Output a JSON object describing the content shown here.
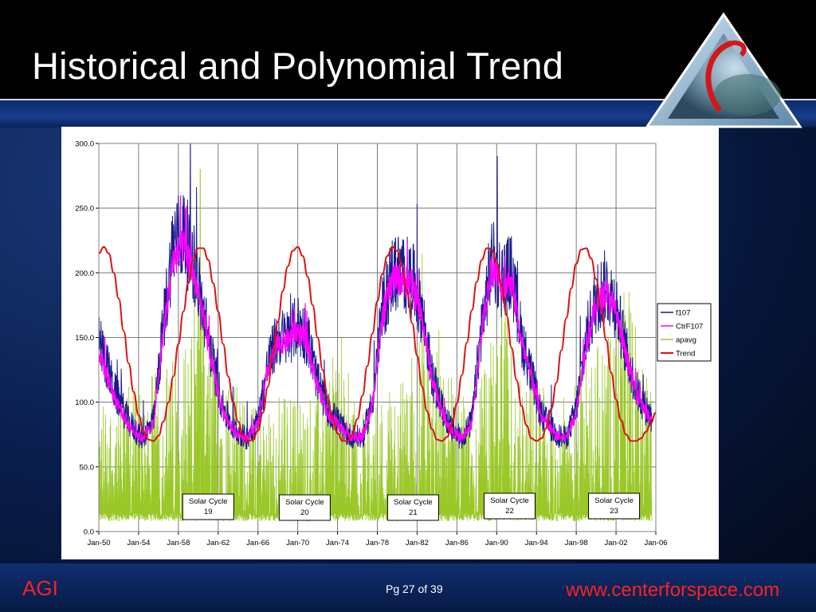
{
  "slide": {
    "title": "Historical and Polynomial Trend",
    "footer_left": "AGI",
    "page_label": "Pg 27 of 39",
    "footer_url": "www.centerforspace.com",
    "colors": {
      "title": "#ffffff",
      "footer_text": "#ff2020",
      "background": "#0a1f4f"
    },
    "logo_icon": "agi-triangle-globe-logo"
  },
  "chart_data": {
    "type": "line",
    "title": "",
    "xlabel": "",
    "ylabel": "",
    "x_ticks": [
      "Jan-50",
      "Jan-54",
      "Jan-58",
      "Jan-62",
      "Jan-66",
      "Jan-70",
      "Jan-74",
      "Jan-78",
      "Jan-82",
      "Jan-86",
      "Jan-90",
      "Jan-94",
      "Jan-98",
      "Jan-02",
      "Jan-06"
    ],
    "xlim": [
      1950.0,
      2006.0
    ],
    "ylim": [
      0,
      300
    ],
    "y_ticks": [
      "0.0",
      "50.0",
      "100.0",
      "150.0",
      "200.0",
      "250.0",
      "300.0"
    ],
    "grid": true,
    "legend_position": "right",
    "series": [
      {
        "name": "f107",
        "color": "#1a1a8c",
        "style": "noisy",
        "noise_amplitude": 26,
        "x": [
          1950.0,
          1951.5,
          1953.0,
          1954.3,
          1955.5,
          1956.5,
          1957.5,
          1958.5,
          1959.5,
          1960.5,
          1961.5,
          1962.5,
          1963.5,
          1964.8,
          1966.0,
          1967.0,
          1968.0,
          1969.0,
          1970.0,
          1971.0,
          1972.0,
          1973.0,
          1974.0,
          1975.0,
          1976.5,
          1977.5,
          1978.5,
          1979.5,
          1980.5,
          1981.5,
          1982.5,
          1983.5,
          1984.5,
          1985.5,
          1986.5,
          1987.5,
          1988.5,
          1989.5,
          1990.5,
          1991.5,
          1992.5,
          1993.5,
          1994.5,
          1996.0,
          1997.0,
          1998.0,
          1999.0,
          2000.0,
          2001.0,
          2002.0,
          2003.0,
          2004.0,
          2005.0,
          2005.6
        ],
        "values": [
          150,
          110,
          85,
          72,
          85,
          160,
          225,
          230,
          210,
          170,
          130,
          95,
          80,
          72,
          85,
          130,
          150,
          150,
          160,
          150,
          115,
          95,
          85,
          75,
          72,
          100,
          170,
          200,
          200,
          195,
          170,
          120,
          95,
          78,
          72,
          85,
          160,
          210,
          195,
          200,
          150,
          120,
          90,
          75,
          72,
          95,
          150,
          180,
          190,
          175,
          140,
          110,
          95,
          88
        ]
      },
      {
        "name": "CtrF107",
        "color": "#ff00ff",
        "style": "noisy",
        "noise_amplitude": 11,
        "x": [
          1950.0,
          1951.5,
          1953.0,
          1954.3,
          1955.5,
          1956.5,
          1957.5,
          1958.5,
          1959.5,
          1960.5,
          1961.5,
          1962.5,
          1963.5,
          1964.8,
          1966.0,
          1967.0,
          1968.0,
          1969.0,
          1970.0,
          1971.0,
          1972.0,
          1973.0,
          1974.0,
          1975.0,
          1976.5,
          1977.5,
          1978.5,
          1979.5,
          1980.5,
          1981.5,
          1982.5,
          1983.5,
          1984.5,
          1985.5,
          1986.5,
          1987.5,
          1988.5,
          1989.5,
          1990.5,
          1991.5,
          1992.5,
          1993.5,
          1994.5,
          1996.0,
          1997.0,
          1998.0,
          1999.0,
          2000.0,
          2001.0,
          2002.0,
          2003.0,
          2004.0,
          2005.0,
          2005.6
        ],
        "values": [
          140,
          105,
          82,
          72,
          83,
          155,
          210,
          220,
          200,
          165,
          125,
          92,
          78,
          72,
          83,
          125,
          145,
          148,
          155,
          145,
          112,
          92,
          83,
          74,
          72,
          98,
          165,
          195,
          195,
          190,
          165,
          118,
          92,
          77,
          72,
          83,
          155,
          205,
          190,
          195,
          145,
          118,
          88,
          74,
          72,
          92,
          145,
          175,
          185,
          170,
          135,
          108,
          92,
          85
        ]
      },
      {
        "name": "apavg",
        "color": "#9ac829",
        "style": "spiky",
        "baseline": 8,
        "spike_scale": 62,
        "x": [
          1950.0,
          1952.0,
          1954.0,
          1956.0,
          1958.0,
          1959.0,
          1960.0,
          1961.0,
          1962.0,
          1964.0,
          1966.0,
          1968.0,
          1970.0,
          1972.0,
          1974.0,
          1976.0,
          1978.0,
          1980.0,
          1982.0,
          1984.0,
          1986.0,
          1988.0,
          1990.0,
          1991.0,
          1992.0,
          1994.0,
          1996.0,
          1998.0,
          2000.0,
          2002.0,
          2003.0,
          2004.0,
          2005.0,
          2005.6
        ],
        "values": [
          95,
          95,
          110,
          110,
          130,
          150,
          180,
          150,
          130,
          100,
          85,
          95,
          95,
          100,
          150,
          80,
          90,
          110,
          130,
          150,
          90,
          95,
          150,
          160,
          120,
          110,
          80,
          110,
          130,
          160,
          180,
          150,
          120,
          90
        ],
        "peaks": [
          {
            "x": 1960.2,
            "y": 280
          },
          {
            "x": 1959.6,
            "y": 190
          },
          {
            "x": 1982.5,
            "y": 215
          },
          {
            "x": 1990.5,
            "y": 190
          },
          {
            "x": 2003.3,
            "y": 185
          }
        ]
      },
      {
        "name": "Trend",
        "color": "#e01010",
        "style": "smooth",
        "x": [
          1950.0,
          1950.5,
          1951.0,
          1951.5,
          1952.0,
          1952.5,
          1953.0,
          1953.5,
          1954.0,
          1954.5,
          1955.0,
          1955.5,
          1956.0,
          1956.5,
          1957.0,
          1957.5,
          1958.0,
          1958.5,
          1959.0,
          1959.5,
          1960.0,
          1960.5,
          1961.0,
          1961.5,
          1962.0,
          1962.5,
          1963.0,
          1963.5,
          1964.0,
          1964.5,
          1965.0,
          1965.5,
          1966.0,
          1966.5,
          1967.0,
          1967.5,
          1968.0,
          1968.5,
          1969.0,
          1969.5,
          1970.0,
          1970.5,
          1971.0,
          1971.5,
          1972.0,
          1972.5,
          1973.0,
          1973.5,
          1974.0,
          1974.5,
          1975.0,
          1975.5,
          1976.0,
          1976.5,
          1977.0,
          1977.5,
          1978.0,
          1978.5,
          1979.0,
          1979.5,
          1980.0,
          1980.5,
          1981.0,
          1981.5,
          1982.0,
          1982.5,
          1983.0,
          1983.5,
          1984.0,
          1984.5,
          1985.0,
          1985.5,
          1986.0,
          1986.5,
          1987.0,
          1987.5,
          1988.0,
          1988.5,
          1989.0,
          1989.5,
          1990.0,
          1990.5,
          1991.0,
          1991.5,
          1992.0,
          1992.5,
          1993.0,
          1993.5,
          1994.0,
          1994.5,
          1995.0,
          1995.5,
          1996.0,
          1996.5,
          1997.0,
          1997.5,
          1998.0,
          1998.5,
          1999.0,
          1999.5,
          2000.0,
          2000.5,
          2001.0,
          2001.5,
          2002.0,
          2002.5,
          2003.0,
          2003.5,
          2004.0,
          2004.5,
          2005.0,
          2005.5,
          2006.0
        ],
        "values": [
          215,
          220,
          215,
          200,
          180,
          155,
          130,
          108,
          90,
          77,
          71,
          70,
          74,
          85,
          100,
          120,
          145,
          170,
          192,
          210,
          219,
          219,
          210,
          192,
          170,
          145,
          120,
          100,
          85,
          74,
          70,
          71,
          78,
          92,
          112,
          137,
          162,
          186,
          205,
          217,
          220,
          213,
          197,
          175,
          150,
          125,
          104,
          87,
          76,
          70,
          70,
          75,
          87,
          105,
          128,
          153,
          178,
          199,
          213,
          220,
          217,
          205,
          185,
          161,
          136,
          112,
          93,
          79,
          71,
          70,
          73,
          83,
          99,
          121,
          146,
          171,
          193,
          210,
          219,
          218,
          208,
          190,
          167,
          142,
          117,
          97,
          82,
          72,
          70,
          72,
          80,
          95,
          115,
          140,
          165,
          188,
          207,
          218,
          219,
          211,
          195,
          172,
          148,
          123,
          102,
          86,
          75,
          70,
          70,
          72,
          77,
          84,
          92
        ]
      }
    ],
    "annotations": [
      {
        "label": "Solar Cycle 19",
        "lines": [
          "Solar Cycle",
          "19"
        ],
        "x": 1961.0
      },
      {
        "label": "Solar Cycle 20",
        "lines": [
          "Solar Cycle",
          "20"
        ],
        "x": 1970.7
      },
      {
        "label": "Solar Cycle 21",
        "lines": [
          "Solar Cycle",
          "21"
        ],
        "x": 1981.6
      },
      {
        "label": "Solar Cycle 22",
        "lines": [
          "Solar Cycle",
          "22"
        ],
        "x": 1991.3
      },
      {
        "label": "Solar Cycle 23",
        "lines": [
          "Solar Cycle",
          "23"
        ],
        "x": 2001.8
      }
    ]
  }
}
